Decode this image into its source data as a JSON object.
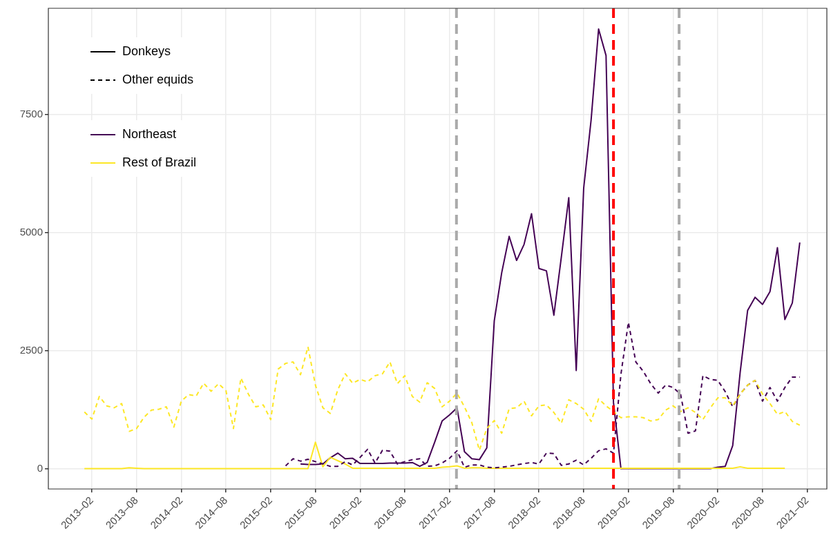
{
  "chart_data": {
    "type": "line",
    "x": [
      "2013-01",
      "2013-02",
      "2013-03",
      "2013-04",
      "2013-05",
      "2013-06",
      "2013-07",
      "2013-08",
      "2013-09",
      "2013-10",
      "2013-11",
      "2013-12",
      "2014-01",
      "2014-02",
      "2014-03",
      "2014-04",
      "2014-05",
      "2014-06",
      "2014-07",
      "2014-08",
      "2014-09",
      "2014-10",
      "2014-11",
      "2014-12",
      "2015-01",
      "2015-02",
      "2015-03",
      "2015-04",
      "2015-05",
      "2015-06",
      "2015-07",
      "2015-08",
      "2015-09",
      "2015-10",
      "2015-11",
      "2015-12",
      "2016-01",
      "2016-02",
      "2016-03",
      "2016-04",
      "2016-05",
      "2016-06",
      "2016-07",
      "2016-08",
      "2016-09",
      "2016-10",
      "2016-11",
      "2016-12",
      "2017-01",
      "2017-02",
      "2017-03",
      "2017-04",
      "2017-05",
      "2017-06",
      "2017-07",
      "2017-08",
      "2017-09",
      "2017-10",
      "2017-11",
      "2017-12",
      "2018-01",
      "2018-02",
      "2018-03",
      "2018-04",
      "2018-05",
      "2018-06",
      "2018-07",
      "2018-08",
      "2018-09",
      "2018-10",
      "2018-11",
      "2018-12",
      "2019-01",
      "2019-02",
      "2019-03",
      "2019-04",
      "2019-05",
      "2019-06",
      "2019-07",
      "2019-08",
      "2019-09",
      "2019-10",
      "2019-11",
      "2019-12",
      "2020-01",
      "2020-02",
      "2020-03",
      "2020-04",
      "2020-05",
      "2020-06",
      "2020-07",
      "2020-08",
      "2020-09",
      "2020-10",
      "2020-11",
      "2020-12",
      "2021-01"
    ],
    "series": [
      {
        "name": "Donkeys",
        "color": "#000000",
        "line_style": "solid",
        "values": [
          null,
          null,
          null,
          null,
          null,
          null,
          null,
          null,
          null,
          null,
          null,
          null,
          null,
          null,
          null,
          null,
          null,
          null,
          null,
          null,
          null,
          null,
          null,
          null,
          null,
          null,
          null,
          null,
          null,
          null,
          null,
          null,
          null,
          null,
          null,
          null,
          null,
          null,
          null,
          null,
          null,
          null,
          null,
          null,
          null,
          null,
          null,
          null,
          null,
          null,
          null,
          null,
          null,
          null,
          null,
          null,
          null,
          null,
          null,
          null,
          null,
          null,
          null,
          null,
          null,
          null,
          null,
          null,
          null,
          null,
          null,
          null,
          null,
          null,
          null,
          null,
          null,
          null,
          null,
          null,
          null,
          null,
          null,
          null,
          null,
          null,
          null,
          null,
          null,
          null,
          null,
          null,
          null,
          null,
          null,
          null,
          null
        ]
      },
      {
        "name": "Other equids",
        "color": "#000000",
        "line_style": "dashed",
        "values": [
          null,
          null,
          null,
          null,
          null,
          null,
          null,
          null,
          null,
          null,
          null,
          null,
          null,
          null,
          null,
          null,
          null,
          null,
          null,
          null,
          null,
          null,
          null,
          null,
          null,
          null,
          null,
          null,
          null,
          null,
          null,
          null,
          null,
          null,
          null,
          null,
          null,
          null,
          null,
          null,
          null,
          null,
          null,
          null,
          null,
          null,
          null,
          null,
          null,
          null,
          null,
          null,
          null,
          null,
          null,
          null,
          null,
          null,
          null,
          null,
          null,
          null,
          null,
          null,
          null,
          null,
          null,
          null,
          null,
          null,
          null,
          null,
          null,
          null,
          null,
          null,
          null,
          null,
          null,
          null,
          null,
          null,
          null,
          null,
          null,
          null,
          null,
          null,
          null,
          null,
          null,
          null,
          null,
          null,
          null,
          null,
          null
        ]
      },
      {
        "name": "Northeast",
        "color": "#440154",
        "line_style": "solid",
        "values": [
          null,
          null,
          null,
          null,
          null,
          null,
          null,
          null,
          null,
          null,
          null,
          null,
          null,
          null,
          null,
          null,
          null,
          null,
          null,
          null,
          null,
          null,
          null,
          null,
          null,
          null,
          null,
          null,
          null,
          100,
          90,
          90,
          100,
          230,
          330,
          210,
          220,
          110,
          110,
          110,
          110,
          120,
          120,
          120,
          130,
          50,
          130,
          560,
          1010,
          1140,
          1290,
          360,
          210,
          190,
          440,
          3130,
          4150,
          4920,
          4410,
          4750,
          5400,
          4240,
          4190,
          3250,
          4480,
          5740,
          2080,
          5940,
          7390,
          9310,
          8750,
          1400,
          0,
          0,
          0,
          0,
          0,
          0,
          0,
          0,
          0,
          0,
          0,
          0,
          0,
          30,
          50,
          490,
          2040,
          3350,
          3630,
          3480,
          3750,
          4680,
          3160,
          3510,
          4790
        ]
      },
      {
        "name": "Rest of Brazil",
        "color": "#fde725",
        "line_style": "solid",
        "values": [
          0,
          0,
          0,
          0,
          0,
          0,
          20,
          10,
          0,
          0,
          0,
          0,
          0,
          0,
          0,
          0,
          0,
          0,
          0,
          0,
          0,
          0,
          0,
          0,
          0,
          0,
          0,
          0,
          0,
          0,
          0,
          560,
          40,
          240,
          170,
          100,
          10,
          10,
          10,
          10,
          10,
          10,
          10,
          10,
          10,
          10,
          10,
          10,
          30,
          40,
          60,
          10,
          20,
          20,
          10,
          10,
          10,
          10,
          10,
          10,
          10,
          10,
          10,
          10,
          10,
          10,
          10,
          10,
          10,
          10,
          10,
          10,
          10,
          10,
          10,
          10,
          10,
          10,
          10,
          10,
          10,
          10,
          10,
          10,
          10,
          10,
          10,
          10,
          40,
          10,
          10,
          10,
          10,
          10,
          10,
          null,
          null
        ]
      },
      {
        "color": "#440154",
        "line_style": "dashed",
        "values": [
          null,
          null,
          null,
          null,
          null,
          null,
          null,
          null,
          null,
          null,
          null,
          null,
          null,
          null,
          null,
          null,
          null,
          null,
          null,
          null,
          null,
          null,
          null,
          null,
          null,
          null,
          null,
          60,
          210,
          160,
          200,
          150,
          100,
          50,
          50,
          150,
          80,
          240,
          410,
          120,
          390,
          370,
          100,
          150,
          190,
          210,
          50,
          60,
          120,
          220,
          380,
          30,
          80,
          80,
          30,
          20,
          30,
          50,
          80,
          110,
          130,
          100,
          330,
          320,
          70,
          100,
          180,
          80,
          220,
          380,
          420,
          330,
          2000,
          3100,
          2260,
          2060,
          1800,
          1600,
          1770,
          1720,
          1580,
          750,
          800,
          1970,
          1890,
          1870,
          1630,
          1310,
          1580,
          1770,
          1870,
          1430,
          1720,
          1430,
          1720,
          1940,
          1940
        ]
      },
      {
        "color": "#fde725",
        "line_style": "dashed",
        "values": [
          1200,
          1050,
          1530,
          1330,
          1290,
          1380,
          790,
          850,
          1090,
          1240,
          1260,
          1310,
          880,
          1430,
          1570,
          1540,
          1810,
          1640,
          1800,
          1650,
          850,
          1920,
          1580,
          1310,
          1350,
          1040,
          2110,
          2230,
          2260,
          1990,
          2580,
          1770,
          1290,
          1170,
          1670,
          2010,
          1810,
          1890,
          1840,
          1970,
          2010,
          2260,
          1800,
          1970,
          1530,
          1410,
          1820,
          1700,
          1310,
          1430,
          1600,
          1310,
          970,
          390,
          850,
          1020,
          750,
          1270,
          1290,
          1430,
          1120,
          1330,
          1350,
          1190,
          960,
          1460,
          1380,
          1260,
          1000,
          1480,
          1330,
          1210,
          1080,
          1100,
          1100,
          1080,
          1010,
          1040,
          1240,
          1330,
          1210,
          1290,
          1190,
          1040,
          1290,
          1500,
          1500,
          1330,
          1580,
          1770,
          1870,
          1580,
          1380,
          1150,
          1210,
          1000,
          920
        ]
      }
    ],
    "ref_lines": [
      {
        "axis": "x",
        "value": "2017-02-27",
        "color": "#aaaaaa",
        "line_style": "dashed"
      },
      {
        "axis": "x",
        "value": "2018-12-01",
        "color": "#ff0000",
        "line_style": "dashed"
      },
      {
        "axis": "x",
        "value": "2019-08-26",
        "color": "#aaaaaa",
        "line_style": "dashed"
      }
    ],
    "xlim": [
      "2012-08-06",
      "2021-04-20"
    ],
    "xticks": [
      {
        "value": "2013-02",
        "label": "2013–02"
      },
      {
        "value": "2013-08",
        "label": "2013–08"
      },
      {
        "value": "2014-02",
        "label": "2014–02"
      },
      {
        "value": "2014-08",
        "label": "2014–08"
      },
      {
        "value": "2015-02",
        "label": "2015–02"
      },
      {
        "value": "2015-08",
        "label": "2015–08"
      },
      {
        "value": "2016-02",
        "label": "2016–02"
      },
      {
        "value": "2016-08",
        "label": "2016–08"
      },
      {
        "value": "2017-02",
        "label": "2017–02"
      },
      {
        "value": "2017-08",
        "label": "2017–08"
      },
      {
        "value": "2018-02",
        "label": "2018–02"
      },
      {
        "value": "2018-08",
        "label": "2018–08"
      },
      {
        "value": "2019-02",
        "label": "2019–02"
      },
      {
        "value": "2019-08",
        "label": "2019–08"
      },
      {
        "value": "2020-02",
        "label": "2020–02"
      },
      {
        "value": "2020-08",
        "label": "2020–08"
      },
      {
        "value": "2021-02",
        "label": "2021–02"
      }
    ],
    "ylim": [
      -430,
      9750
    ],
    "yticks": [
      0,
      2500,
      5000,
      7500
    ],
    "grid": true,
    "legend": "top left"
  }
}
